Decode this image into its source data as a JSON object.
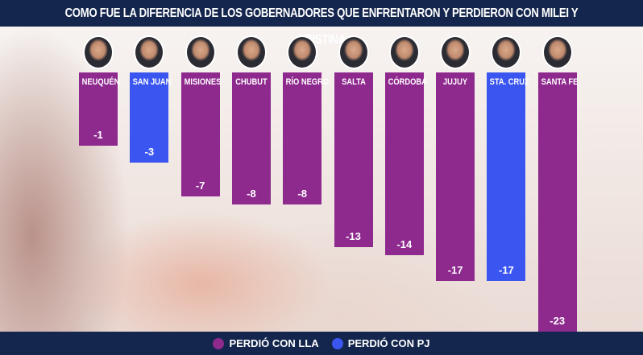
{
  "title": "COMO FUE LA DIFERENCIA DE LOS GOBERNADORES QUE ENFRENTARON Y PERDIERON CON MILEI Y CRISTINA",
  "colors": {
    "lla": "#8e2a8e",
    "pj": "#3b56f0",
    "header": "#14264d"
  },
  "legend": [
    {
      "label": "PERDIÓ CON LLA",
      "color": "#8e2a8e"
    },
    {
      "label": "PERDIÓ CON PJ",
      "color": "#3b56f0"
    }
  ],
  "chart_data": {
    "type": "bar",
    "title": "COMO FUE LA DIFERENCIA DE LOS GOBERNADORES QUE ENFRENTARON Y PERDIERON CON MILEI Y CRISTINA",
    "categories": [
      "NEUQUÉN",
      "SAN JUAN",
      "MISIONES",
      "CHUBUT",
      "RÍO NEGRO",
      "SALTA",
      "CÓRDOBA",
      "JUJUY",
      "STA. CRUZ",
      "SANTA FE"
    ],
    "values": [
      -1,
      -3,
      -7,
      -8,
      -8,
      -13,
      -14,
      -17,
      -17,
      -23
    ],
    "value_labels": [
      "-1",
      "-3",
      "-7",
      "-8",
      "-8",
      "-13",
      "-14",
      "-17",
      "-17",
      "-23"
    ],
    "lost_to": [
      "LLA",
      "PJ",
      "LLA",
      "LLA",
      "LLA",
      "LLA",
      "LLA",
      "LLA",
      "PJ",
      "LLA"
    ],
    "legend_position": "bottom",
    "grid": false
  }
}
